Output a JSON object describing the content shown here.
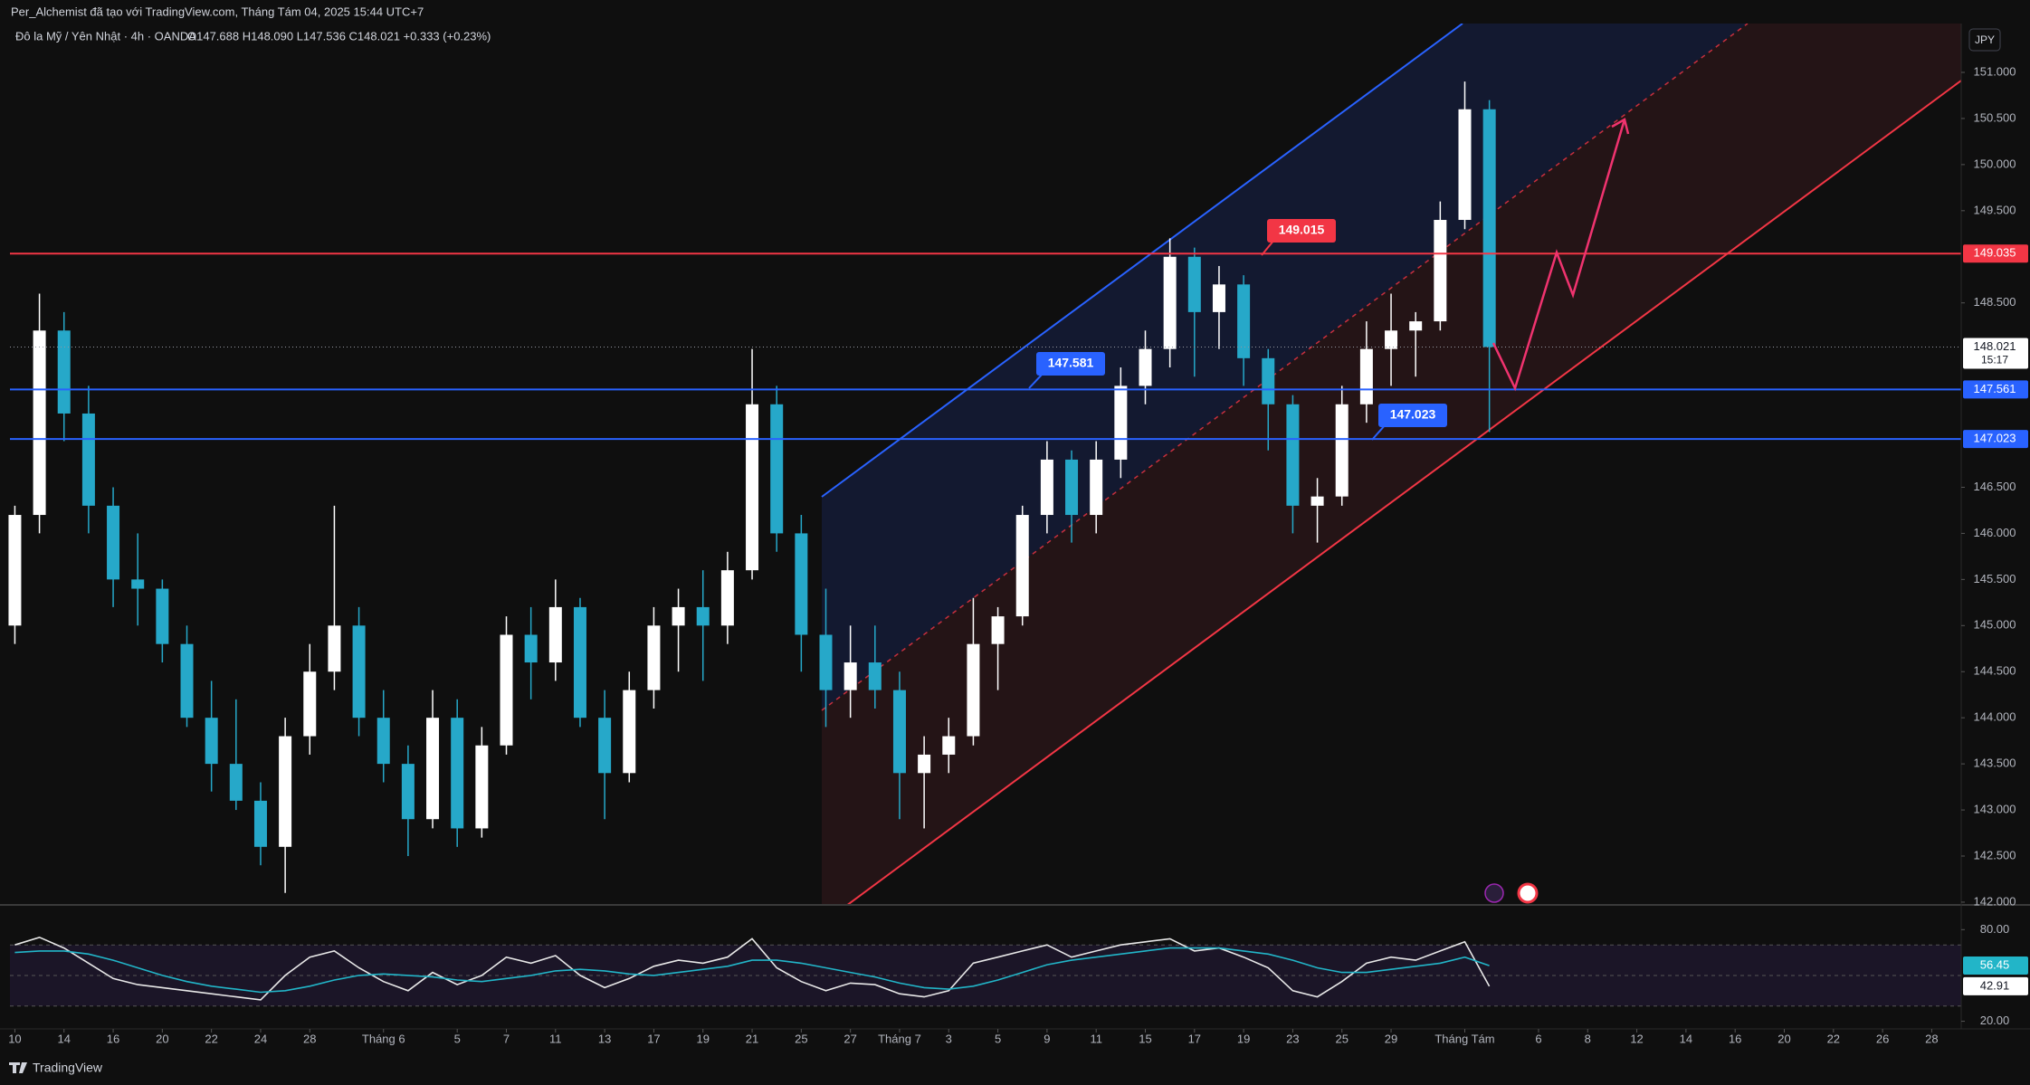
{
  "header": {
    "credit": "Per_Alchemist đã tạo với TradingView.com, Tháng Tám 04, 2025 15:44 UTC+7",
    "symbol": "Đô la Mỹ / Yên Nhật · 4h · OANDA",
    "ohlc": "O147.688 H148.090 L147.536 C148.021 +0.333 (+0.23%)",
    "currency": "JPY",
    "brand": "TradingView"
  },
  "chart_data": [
    {
      "type": "candlestick",
      "up_color": "#ffffff",
      "down_color": "#26a8c9",
      "candles": [
        [
          145.0,
          146.3,
          144.8,
          146.2
        ],
        [
          146.2,
          148.6,
          146.0,
          148.2
        ],
        [
          148.2,
          148.4,
          147.0,
          147.3
        ],
        [
          147.3,
          147.6,
          146.0,
          146.3
        ],
        [
          146.3,
          146.5,
          145.2,
          145.5
        ],
        [
          145.5,
          146.0,
          145.0,
          145.4
        ],
        [
          145.4,
          145.5,
          144.6,
          144.8
        ],
        [
          144.8,
          145.0,
          143.9,
          144.0
        ],
        [
          144.0,
          144.4,
          143.2,
          143.5
        ],
        [
          143.5,
          144.2,
          143.0,
          143.1
        ],
        [
          143.1,
          143.3,
          142.4,
          142.6
        ],
        [
          142.6,
          144.0,
          142.1,
          143.8
        ],
        [
          143.8,
          144.8,
          143.6,
          144.5
        ],
        [
          144.5,
          146.3,
          144.3,
          145.0
        ],
        [
          145.0,
          145.2,
          143.8,
          144.0
        ],
        [
          144.0,
          144.3,
          143.3,
          143.5
        ],
        [
          143.5,
          143.7,
          142.5,
          142.9
        ],
        [
          142.9,
          144.3,
          142.8,
          144.0
        ],
        [
          144.0,
          144.2,
          142.6,
          142.8
        ],
        [
          142.8,
          143.9,
          142.7,
          143.7
        ],
        [
          143.7,
          145.1,
          143.6,
          144.9
        ],
        [
          144.9,
          145.2,
          144.2,
          144.6
        ],
        [
          144.6,
          145.5,
          144.4,
          145.2
        ],
        [
          145.2,
          145.3,
          143.9,
          144.0
        ],
        [
          144.0,
          144.3,
          142.9,
          143.4
        ],
        [
          143.4,
          144.5,
          143.3,
          144.3
        ],
        [
          144.3,
          145.2,
          144.1,
          145.0
        ],
        [
          145.0,
          145.4,
          144.5,
          145.2
        ],
        [
          145.2,
          145.6,
          144.4,
          145.0
        ],
        [
          145.0,
          145.8,
          144.8,
          145.6
        ],
        [
          145.6,
          148.0,
          145.5,
          147.4
        ],
        [
          147.4,
          147.6,
          145.8,
          146.0
        ],
        [
          146.0,
          146.2,
          144.5,
          144.9
        ],
        [
          144.9,
          145.4,
          143.9,
          144.3
        ],
        [
          144.3,
          145.0,
          144.0,
          144.6
        ],
        [
          144.6,
          145.0,
          144.1,
          144.3
        ],
        [
          144.3,
          144.5,
          142.9,
          143.4
        ],
        [
          143.4,
          143.8,
          142.8,
          143.6
        ],
        [
          143.6,
          144.0,
          143.4,
          143.8
        ],
        [
          143.8,
          145.3,
          143.7,
          144.8
        ],
        [
          144.8,
          145.2,
          144.3,
          145.1
        ],
        [
          145.1,
          146.3,
          145.0,
          146.2
        ],
        [
          146.2,
          147.0,
          146.0,
          146.8
        ],
        [
          146.8,
          146.9,
          145.9,
          146.2
        ],
        [
          146.2,
          147.0,
          146.0,
          146.8
        ],
        [
          146.8,
          147.8,
          146.6,
          147.6
        ],
        [
          147.6,
          148.2,
          147.4,
          148.0
        ],
        [
          148.0,
          149.2,
          147.8,
          149.0
        ],
        [
          149.0,
          149.1,
          147.7,
          148.4
        ],
        [
          148.4,
          148.9,
          148.0,
          148.7
        ],
        [
          148.7,
          148.8,
          147.6,
          147.9
        ],
        [
          147.9,
          148.0,
          146.9,
          147.4
        ],
        [
          147.4,
          147.5,
          146.0,
          146.3
        ],
        [
          146.3,
          146.6,
          145.9,
          146.4
        ],
        [
          146.4,
          147.6,
          146.3,
          147.4
        ],
        [
          147.4,
          148.3,
          147.2,
          148.0
        ],
        [
          148.0,
          148.6,
          147.6,
          148.2
        ],
        [
          148.2,
          148.4,
          147.7,
          148.3
        ],
        [
          148.3,
          149.6,
          148.2,
          149.4
        ],
        [
          149.4,
          150.9,
          149.3,
          150.6
        ],
        [
          150.6,
          150.7,
          147.1,
          148.021
        ]
      ],
      "countdown": "15:17",
      "ylim": [
        141.97,
        151.53
      ],
      "yticks": [
        {
          "value": 151,
          "label": "151.000"
        },
        {
          "value": 150.5,
          "label": "150.500"
        },
        {
          "value": 150,
          "label": "150.000"
        },
        {
          "value": 149.5,
          "label": "149.500"
        },
        {
          "value": 148.5,
          "label": "148.500"
        },
        {
          "value": 146.5,
          "label": "146.500"
        },
        {
          "value": 146,
          "label": "146.000"
        },
        {
          "value": 145.5,
          "label": "145.500"
        },
        {
          "value": 145,
          "label": "145.000"
        },
        {
          "value": 144.5,
          "label": "144.500"
        },
        {
          "value": 144,
          "label": "144.000"
        },
        {
          "value": 143.5,
          "label": "143.500"
        },
        {
          "value": 143,
          "label": "143.000"
        },
        {
          "value": 142.5,
          "label": "142.500"
        },
        {
          "value": 142,
          "label": "142.000"
        }
      ],
      "xlim": [
        -0.2,
        79.2
      ],
      "xticks": [
        {
          "value": 0,
          "label": "10"
        },
        {
          "value": 2,
          "label": "14"
        },
        {
          "value": 4,
          "label": "16"
        },
        {
          "value": 6,
          "label": "20"
        },
        {
          "value": 8,
          "label": "22"
        },
        {
          "value": 10,
          "label": "24"
        },
        {
          "value": 12,
          "label": "28"
        },
        {
          "value": 15,
          "label": "Tháng 6"
        },
        {
          "value": 18,
          "label": "5"
        },
        {
          "value": 20,
          "label": "7"
        },
        {
          "value": 22,
          "label": "11"
        },
        {
          "value": 24,
          "label": "13"
        },
        {
          "value": 26,
          "label": "17"
        },
        {
          "value": 28,
          "label": "19"
        },
        {
          "value": 30,
          "label": "21"
        },
        {
          "value": 32,
          "label": "25"
        },
        {
          "value": 34,
          "label": "27"
        },
        {
          "value": 36,
          "label": "Tháng 7"
        },
        {
          "value": 38,
          "label": "3"
        },
        {
          "value": 40,
          "label": "5"
        },
        {
          "value": 42,
          "label": "9"
        },
        {
          "value": 44,
          "label": "11"
        },
        {
          "value": 46,
          "label": "15"
        },
        {
          "value": 48,
          "label": "17"
        },
        {
          "value": 50,
          "label": "19"
        },
        {
          "value": 52,
          "label": "23"
        },
        {
          "value": 54,
          "label": "25"
        },
        {
          "value": 56,
          "label": "29"
        },
        {
          "value": 59,
          "label": "Tháng Tám"
        },
        {
          "value": 62,
          "label": "6"
        },
        {
          "value": 64,
          "label": "8"
        },
        {
          "value": 66,
          "label": "12"
        },
        {
          "value": 68,
          "label": "14"
        },
        {
          "value": 70,
          "label": "16"
        },
        {
          "value": 72,
          "label": "20"
        },
        {
          "value": 74,
          "label": "22"
        },
        {
          "value": 76,
          "label": "26"
        },
        {
          "value": 78,
          "label": "28"
        }
      ],
      "levels": [
        {
          "value": 149.035,
          "color": "#f23645"
        },
        {
          "value": 147.561,
          "color": "#2962ff"
        },
        {
          "value": 147.023,
          "color": "#2962ff"
        }
      ],
      "callouts": [
        {
          "value": 149.015,
          "color": "#f23645"
        },
        {
          "value": 147.581,
          "color": "#2962ff"
        },
        {
          "value": 147.023,
          "color": "#2962ff"
        }
      ]
    },
    {
      "type": "line",
      "series": [
        {
          "color": "#e8e8e8",
          "values": [
            70,
            75,
            68,
            58,
            48,
            44,
            42,
            40,
            38,
            36,
            34,
            50,
            62,
            66,
            55,
            46,
            40,
            52,
            44,
            50,
            62,
            58,
            63,
            50,
            42,
            48,
            56,
            60,
            58,
            62,
            74,
            55,
            46,
            40,
            45,
            44,
            38,
            36,
            40,
            58,
            62,
            66,
            70,
            62,
            66,
            70,
            72,
            74,
            66,
            68,
            62,
            55,
            40,
            36,
            46,
            58,
            62,
            60,
            66,
            72,
            42.91
          ]
        },
        {
          "color": "#22b5c8",
          "values": [
            65,
            66,
            66,
            64,
            60,
            55,
            50,
            46,
            43,
            41,
            39,
            40,
            43,
            47,
            50,
            51,
            50,
            49,
            47,
            46,
            48,
            50,
            53,
            54,
            53,
            51,
            50,
            52,
            54,
            56,
            60,
            60,
            58,
            55,
            52,
            49,
            45,
            42,
            41,
            43,
            47,
            52,
            57,
            60,
            62,
            64,
            66,
            68,
            68,
            68,
            66,
            64,
            60,
            55,
            52,
            52,
            54,
            56,
            58,
            62,
            56.45
          ]
        }
      ],
      "ylim": [
        15,
        95
      ],
      "yticks": [
        {
          "value": 80,
          "label": "80.00"
        },
        {
          "value": 20,
          "label": "20.00"
        }
      ],
      "bands": [
        70,
        50,
        30
      ]
    }
  ]
}
